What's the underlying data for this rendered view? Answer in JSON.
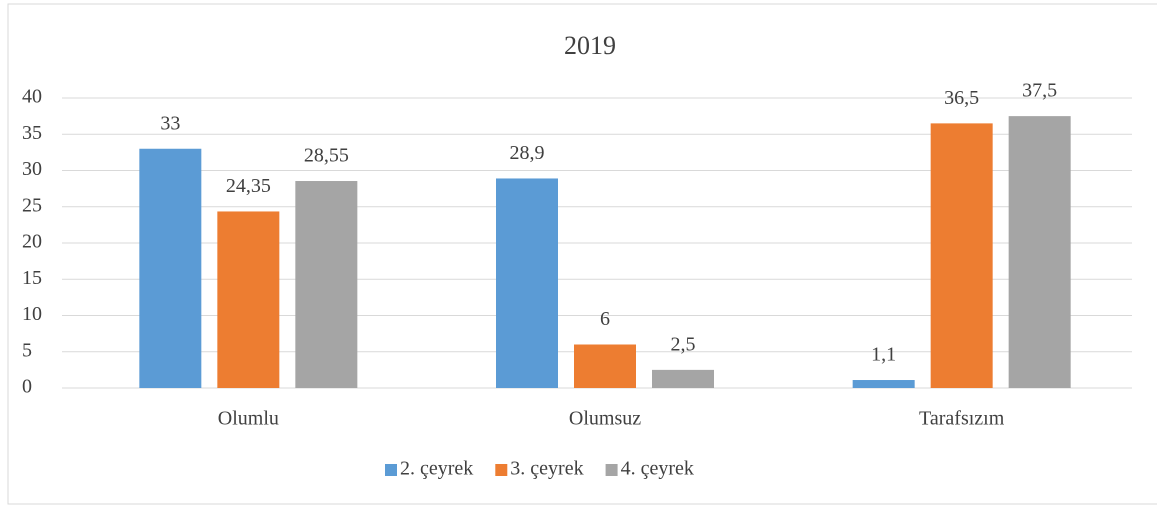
{
  "chart_data": {
    "type": "bar",
    "title": "2019",
    "categories": [
      "Olumlu",
      "Olumsuz",
      "Tarafsızım"
    ],
    "series": [
      {
        "name": "2. çeyrek",
        "color": "#5b9bd5",
        "values": [
          33,
          28.9,
          1.1
        ],
        "value_labels": [
          "33",
          "28,9",
          "1,1"
        ]
      },
      {
        "name": "3. çeyrek",
        "color": "#ed7d31",
        "values": [
          24.35,
          6,
          36.5
        ],
        "value_labels": [
          "24,35",
          "6",
          "36,5"
        ]
      },
      {
        "name": "4. çeyrek",
        "color": "#a5a5a5",
        "values": [
          28.55,
          2.5,
          37.5
        ],
        "value_labels": [
          "28,55",
          "2,5",
          "37,5"
        ]
      }
    ],
    "ylim": [
      0,
      40
    ],
    "yticks": [
      0,
      5,
      10,
      15,
      20,
      25,
      30,
      35,
      40
    ],
    "grid": true,
    "legend": "bottom"
  }
}
